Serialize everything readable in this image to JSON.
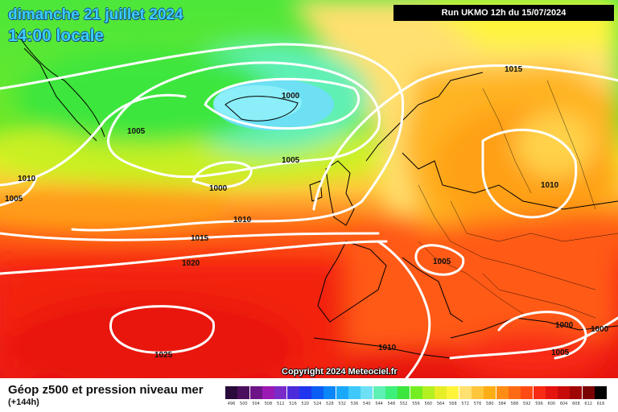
{
  "header": {
    "date": "dimanche 21 juillet 2024",
    "time": "14:00 locale",
    "run": "Run UKMO 12h du 15/07/2024"
  },
  "copyright": "Copyright 2024 Meteociel.fr",
  "legend": {
    "title": "Géop z500 et pression niveau mer",
    "subtitle": "(+144h)",
    "scale": [
      {
        "value": "496",
        "color": "#2a0a3a"
      },
      {
        "value": "500",
        "color": "#4b0f5e"
      },
      {
        "value": "504",
        "color": "#6e1487"
      },
      {
        "value": "508",
        "color": "#9a19b3"
      },
      {
        "value": "512",
        "color": "#7a2ac9"
      },
      {
        "value": "516",
        "color": "#4c2bdb"
      },
      {
        "value": "520",
        "color": "#1f36ee"
      },
      {
        "value": "524",
        "color": "#0a5df5"
      },
      {
        "value": "528",
        "color": "#0a86f8"
      },
      {
        "value": "532",
        "color": "#19a8fa"
      },
      {
        "value": "536",
        "color": "#3ec8fb"
      },
      {
        "value": "540",
        "color": "#6de0f4"
      },
      {
        "value": "544",
        "color": "#5ff0b5"
      },
      {
        "value": "548",
        "color": "#3cf07a"
      },
      {
        "value": "552",
        "color": "#3ce63c"
      },
      {
        "value": "556",
        "color": "#74ee22"
      },
      {
        "value": "560",
        "color": "#b3f022"
      },
      {
        "value": "564",
        "color": "#e6ee28"
      },
      {
        "value": "568",
        "color": "#fff43c"
      },
      {
        "value": "572",
        "color": "#ffe070"
      },
      {
        "value": "576",
        "color": "#ffc63c"
      },
      {
        "value": "580",
        "color": "#ffad14"
      },
      {
        "value": "584",
        "color": "#ff8c14"
      },
      {
        "value": "588",
        "color": "#ff6a14"
      },
      {
        "value": "592",
        "color": "#ff4a14"
      },
      {
        "value": "596",
        "color": "#f82a14"
      },
      {
        "value": "600",
        "color": "#e6140f"
      },
      {
        "value": "604",
        "color": "#c80a0a"
      },
      {
        "value": "608",
        "color": "#a00505"
      },
      {
        "value": "612",
        "color": "#7a0202"
      },
      {
        "value": "616",
        "color": "#000000"
      }
    ]
  },
  "isobars": [
    {
      "label": "1000"
    },
    {
      "label": "1005"
    },
    {
      "label": "1005"
    },
    {
      "label": "1000"
    },
    {
      "label": "1010"
    },
    {
      "label": "1005"
    },
    {
      "label": "1010"
    },
    {
      "label": "1015"
    },
    {
      "label": "1020"
    },
    {
      "label": "1025"
    },
    {
      "label": "1015"
    },
    {
      "label": "1010"
    },
    {
      "label": "1005"
    },
    {
      "label": "1010"
    },
    {
      "label": "1000"
    },
    {
      "label": "1000"
    },
    {
      "label": "1005"
    }
  ]
}
